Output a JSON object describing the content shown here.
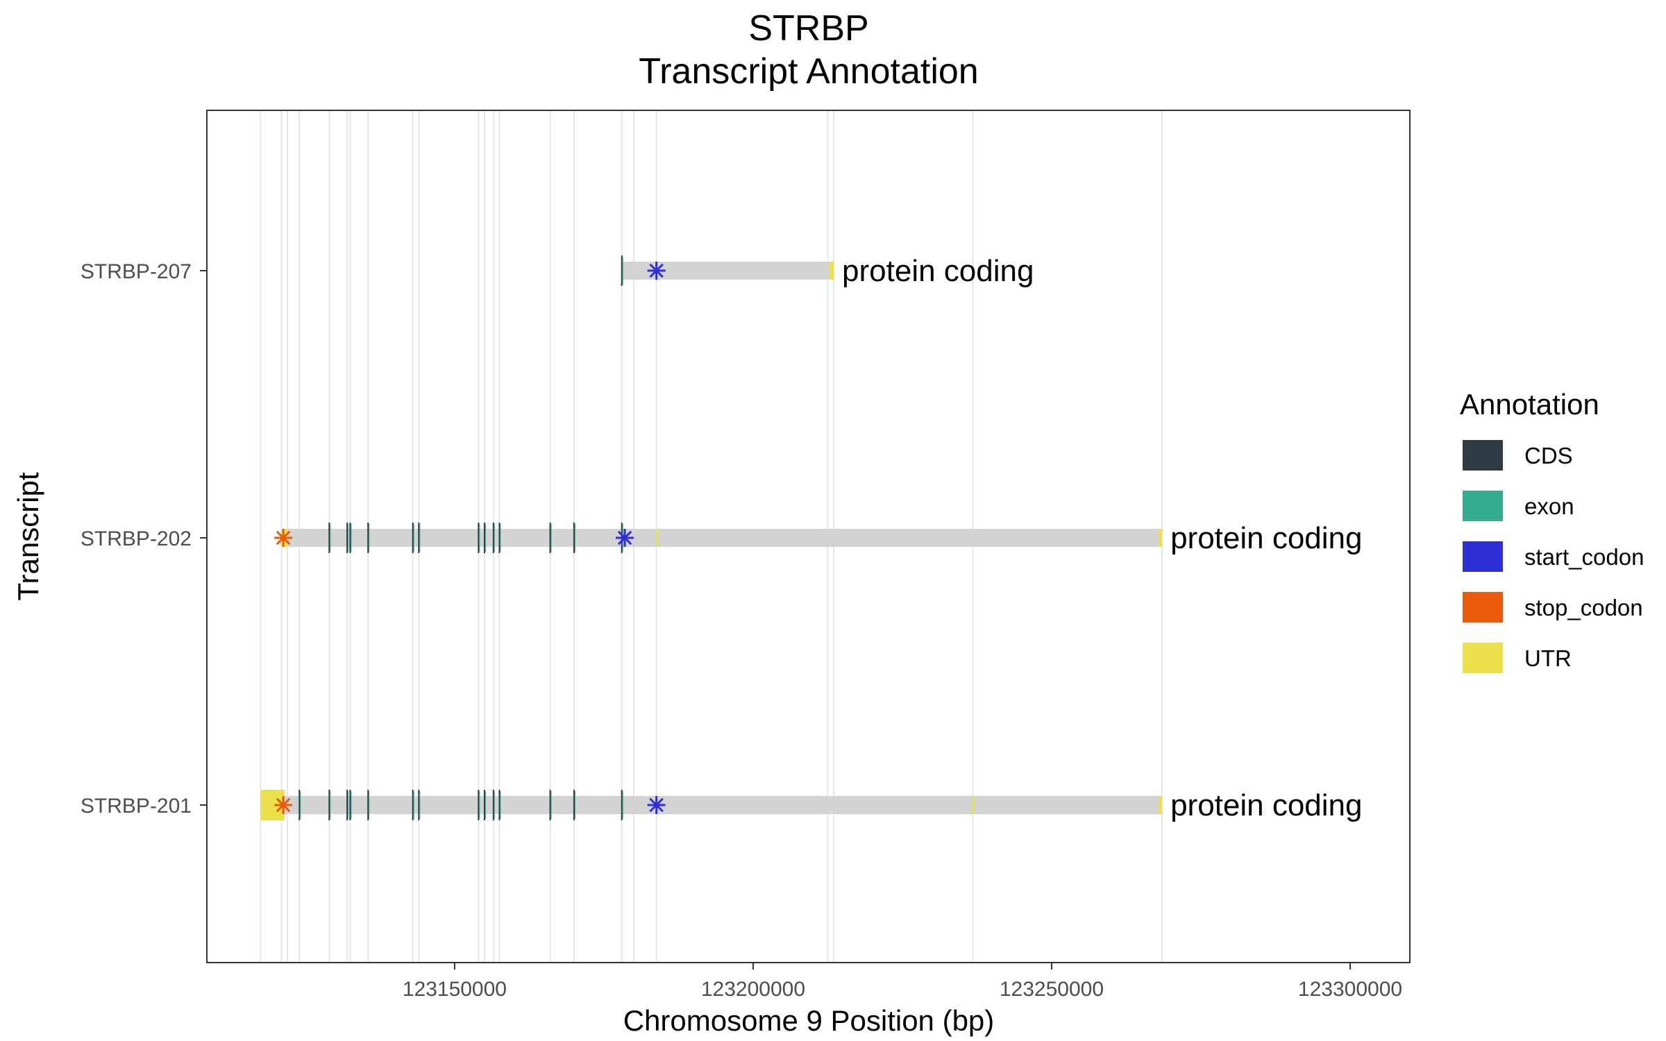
{
  "chart_data": {
    "type": "transcript-track",
    "title": "STRBP",
    "subtitle": "Transcript Annotation",
    "xlabel": "Chromosome 9 Position (bp)",
    "ylabel": "Transcript",
    "xlim": [
      123108500,
      123310000
    ],
    "x_ticks": [
      "123150000",
      "123200000",
      "123250000",
      "123300000"
    ],
    "x_tick_values": [
      123150000,
      123200000,
      123250000,
      123300000
    ],
    "grid": "vertical lines at exon boundaries",
    "legend": {
      "title": "Annotation",
      "position": "right",
      "items": [
        {
          "name": "CDS",
          "color": "#2e3b44"
        },
        {
          "name": "exon",
          "color": "#34ad8e"
        },
        {
          "name": "start_codon",
          "color": "#2f2fd8"
        },
        {
          "name": "stop_codon",
          "color": "#ea5a0b"
        },
        {
          "name": "UTR",
          "color": "#e9e04a"
        }
      ]
    },
    "transcripts": [
      {
        "name": "STRBP-207",
        "biotype": "protein coding",
        "start": 123178000,
        "end": 123213500,
        "utr": [
          [
            123212800,
            123213500
          ]
        ],
        "cds": [
          123178000
        ],
        "start_codon": [
          123183800
        ],
        "stop_codon": []
      },
      {
        "name": "STRBP-202",
        "biotype": "protein coding",
        "start": 123121000,
        "end": 123268500,
        "utr": [
          [
            123121000,
            123122000
          ],
          [
            123183800,
            123184100
          ],
          [
            123268000,
            123268500
          ]
        ],
        "cds": [
          123129000,
          123132000,
          123132500,
          123135500,
          123143000,
          123144000,
          123154000,
          123155000,
          123156500,
          123157500,
          123166000,
          123170000,
          123178000
        ],
        "start_codon": [
          123178500
        ],
        "stop_codon": [
          123121300
        ]
      },
      {
        "name": "STRBP-201",
        "biotype": "protein coding",
        "start": 123117500,
        "end": 123268500,
        "utr": [
          [
            123117500,
            123121500
          ],
          [
            123236800,
            123237100
          ],
          [
            123268000,
            123268500
          ]
        ],
        "cds": [
          123124000,
          123129000,
          123132000,
          123132500,
          123135500,
          123143000,
          123144000,
          123154000,
          123155000,
          123156500,
          123157500,
          123166000,
          123170000,
          123178000
        ],
        "start_codon": [
          123183800
        ],
        "stop_codon": [
          123121300
        ]
      }
    ],
    "grid_lines": [
      123117500,
      123121000,
      123122000,
      123124000,
      123129000,
      123132000,
      123132500,
      123135500,
      123143000,
      123144000,
      123154000,
      123155000,
      123156500,
      123157500,
      123166000,
      123170000,
      123178000,
      123180000,
      123183800,
      123212500,
      123213500,
      123236800,
      123268500
    ]
  }
}
